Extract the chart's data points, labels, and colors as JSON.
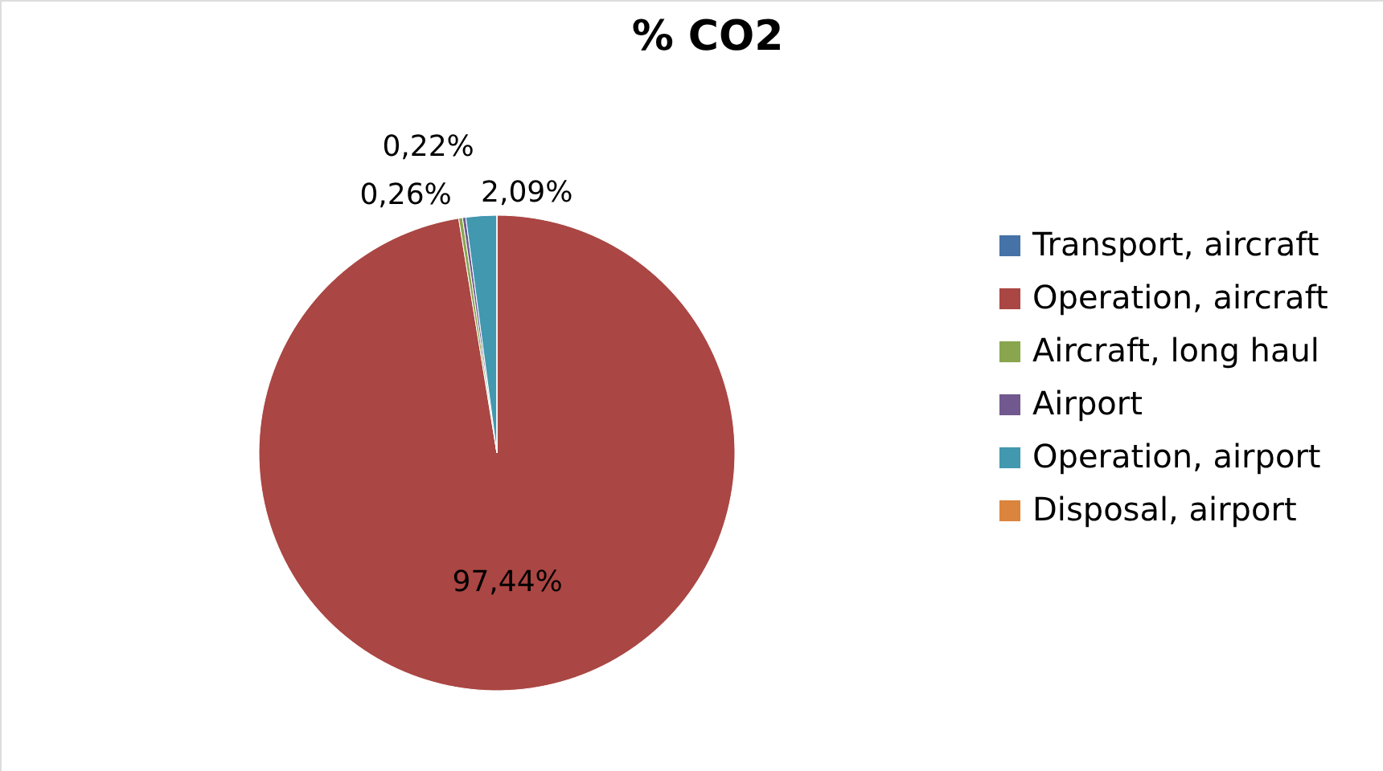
{
  "chart_data": {
    "type": "pie",
    "title": "% CO2",
    "categories": [
      "Transport, aircraft",
      "Operation, aircraft",
      "Aircraft, long haul",
      "Airport",
      "Operation, airport",
      "Disposal, airport"
    ],
    "values": [
      0,
      97.44,
      0.26,
      0.22,
      2.09,
      0
    ],
    "colors": [
      "#4572a7",
      "#aa4643",
      "#89a54e",
      "#71588f",
      "#4198af",
      "#db843d"
    ],
    "value_labels": [
      null,
      "97,44%",
      "0,26%",
      "0,22%",
      "2,09%",
      null
    ],
    "legend": "right"
  }
}
